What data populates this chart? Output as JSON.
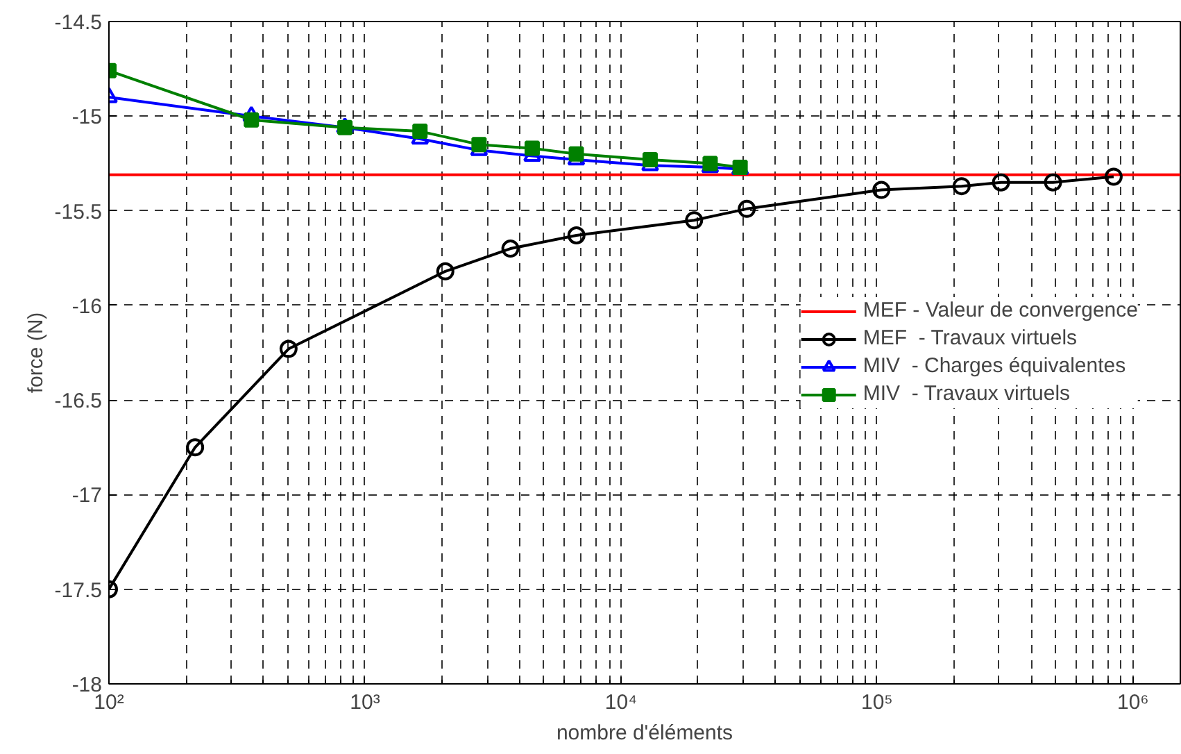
{
  "chart_data": {
    "type": "line",
    "xlabel": "nombre d'éléments",
    "ylabel": "force (N)",
    "log": "x",
    "xlim": [
      100,
      1530000
    ],
    "ylim": [
      -18,
      -14.5
    ],
    "xticks": [
      {
        "value": 100,
        "label": "10²"
      },
      {
        "value": 1000,
        "label": "10³"
      },
      {
        "value": 10000,
        "label": "10⁴"
      },
      {
        "value": 100000,
        "label": "10⁵"
      },
      {
        "value": 1000000,
        "label": "10⁶"
      }
    ],
    "yticks": [
      -18,
      -17.5,
      -17,
      -16.5,
      -16,
      -15.5,
      -15,
      -14.5
    ],
    "grid": true,
    "legend": "right",
    "line_style": "solid",
    "series": [
      {
        "name": "MEF - Valeur de convergence",
        "color": "#ff0000",
        "marker": "none",
        "x": [
          100,
          1530000
        ],
        "values": [
          -15.31,
          -15.31
        ]
      },
      {
        "name": "MEF  - Travaux virtuels",
        "color": "#000000",
        "marker": "circle",
        "x": [
          100,
          217,
          503,
          2060,
          3700,
          6700,
          19300,
          31000,
          104000,
          214000,
          305000,
          487000,
          840000
        ],
        "values": [
          -17.5,
          -16.75,
          -16.23,
          -15.82,
          -15.7,
          -15.63,
          -15.55,
          -15.49,
          -15.39,
          -15.37,
          -15.35,
          -15.35,
          -15.32
        ]
      },
      {
        "name": "MIV  - Charges équivalentes",
        "color": "#0000ff",
        "marker": "triangle",
        "x": [
          100,
          360,
          835,
          1640,
          2790,
          4500,
          6690,
          13000,
          22300,
          29200
        ],
        "values": [
          -14.9,
          -15.0,
          -15.06,
          -15.12,
          -15.18,
          -15.21,
          -15.23,
          -15.26,
          -15.27,
          -15.28
        ]
      },
      {
        "name": "MIV  - Travaux virtuels",
        "color": "#008000",
        "marker": "square",
        "x": [
          100,
          360,
          835,
          1640,
          2790,
          4500,
          6690,
          13000,
          22300,
          29200
        ],
        "values": [
          -14.76,
          -15.02,
          -15.06,
          -15.08,
          -15.15,
          -15.17,
          -15.2,
          -15.23,
          -15.25,
          -15.27
        ]
      }
    ]
  }
}
